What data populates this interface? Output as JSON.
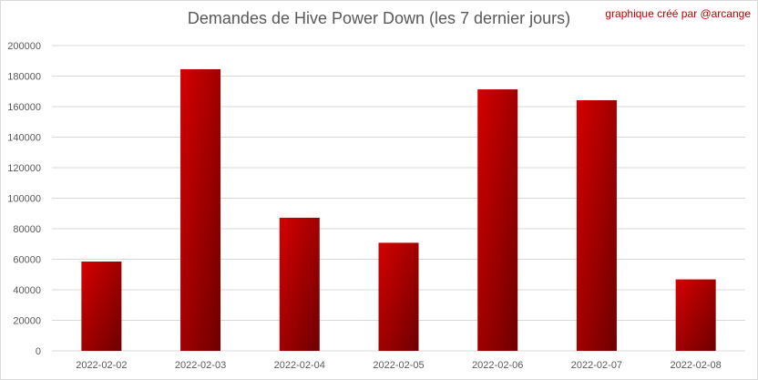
{
  "chart_data": {
    "type": "bar",
    "title": "Demandes de Hive Power Down (les 7 dernier jours)",
    "credit": "graphique créé par @arcange",
    "categories": [
      "2022-02-02",
      "2022-02-03",
      "2022-02-04",
      "2022-02-05",
      "2022-02-06",
      "2022-02-07",
      "2022-02-08"
    ],
    "values": [
      58500,
      184500,
      87200,
      70800,
      171300,
      164200,
      46800
    ],
    "ylim": [
      0,
      200000
    ],
    "ytick_step": 20000,
    "ytick_labels": [
      "0",
      "20000",
      "40000",
      "60000",
      "80000",
      "100000",
      "120000",
      "140000",
      "160000",
      "180000",
      "200000"
    ],
    "grid": true,
    "legend": "none",
    "colors": {
      "bar_light": "#d40000",
      "bar_dark": "#6e0000",
      "grid": "#d9d9d9"
    }
  }
}
